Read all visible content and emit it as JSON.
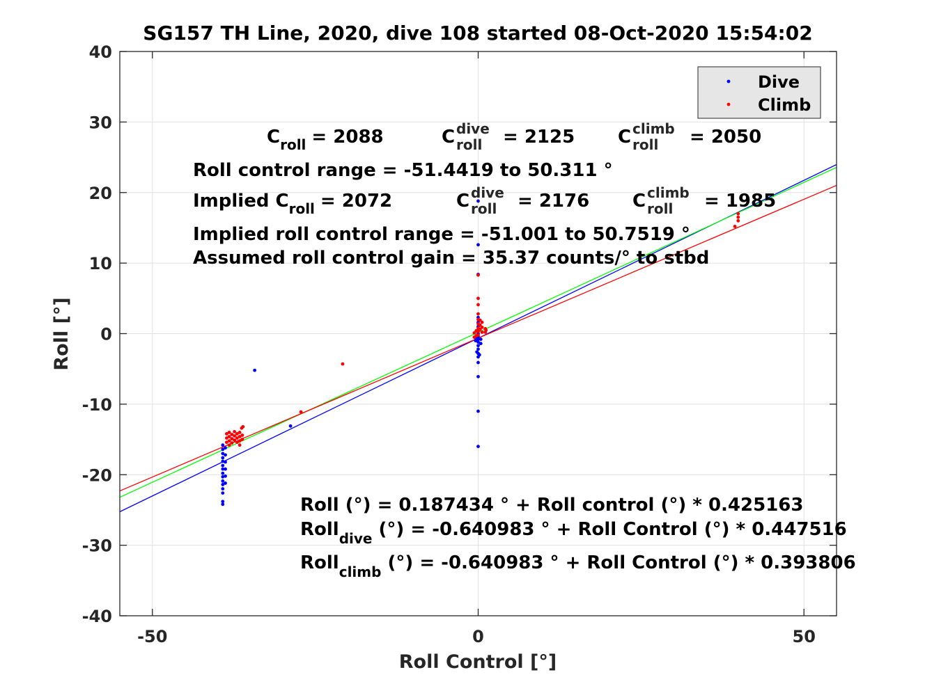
{
  "chart_data": {
    "type": "scatter",
    "title": "SG157 TH Line, 2020, dive 108 started 08-Oct-2020 15:54:02",
    "xlabel": "Roll Control [°]",
    "ylabel": "Roll [°]",
    "xlim": [
      -55,
      55
    ],
    "ylim": [
      -40,
      40
    ],
    "xticks": [
      -50,
      0,
      50
    ],
    "yticks": [
      -40,
      -30,
      -20,
      -10,
      0,
      10,
      20,
      30,
      40
    ],
    "xtick_labels": [
      "-50",
      "0",
      "50"
    ],
    "ytick_labels": [
      "-40",
      "-30",
      "-20",
      "-10",
      "0",
      "10",
      "20",
      "30",
      "40"
    ],
    "grid": true,
    "legend": {
      "placement": "top-right",
      "entries": [
        "Dive",
        "Climb"
      ]
    },
    "colors": {
      "dive": "#0000ff",
      "climb": "#ff0000",
      "combined_fit": "#00ff00"
    },
    "fit_lines": [
      {
        "series": "Dive",
        "intercept": -0.640983,
        "slope": 0.447516,
        "color": "#0000ff"
      },
      {
        "series": "Combined",
        "intercept": 0.187434,
        "slope": 0.425163,
        "color": "#00ff00"
      },
      {
        "series": "Climb",
        "intercept": -0.640983,
        "slope": 0.393806,
        "color": "#ff0000"
      }
    ],
    "series": [
      {
        "name": "Dive",
        "color": "#0000ff",
        "points": [
          [
            -39.2,
            -15.8
          ],
          [
            -39.2,
            -16.4
          ],
          [
            -39.2,
            -17.0
          ],
          [
            -39.2,
            -17.6
          ],
          [
            -39.2,
            -18.1
          ],
          [
            -39.2,
            -18.7
          ],
          [
            -39.2,
            -19.2
          ],
          [
            -39.2,
            -19.8
          ],
          [
            -39.2,
            -20.3
          ],
          [
            -39.2,
            -20.9
          ],
          [
            -39.2,
            -21.4
          ],
          [
            -39.2,
            -22.0
          ],
          [
            -39.2,
            -22.6
          ],
          [
            -39.2,
            -23.8
          ],
          [
            -39.2,
            -24.2
          ],
          [
            -38.8,
            -16.2
          ],
          [
            -38.8,
            -17.2
          ],
          [
            -38.8,
            -18.2
          ],
          [
            -38.8,
            -19.2
          ],
          [
            -38.8,
            -20.2
          ],
          [
            -38.8,
            -21.2
          ],
          [
            -34.3,
            -5.2
          ],
          [
            -28.8,
            -13.1
          ],
          [
            0,
            12.6
          ],
          [
            0,
            8.4
          ],
          [
            0,
            18.8
          ],
          [
            0,
            2.3
          ],
          [
            0,
            1.6
          ],
          [
            0,
            1.0
          ],
          [
            0,
            0.5
          ],
          [
            0,
            0.0
          ],
          [
            0,
            -0.4
          ],
          [
            0,
            -0.8
          ],
          [
            0,
            -1.2
          ],
          [
            0,
            -1.7
          ],
          [
            0,
            -2.2
          ],
          [
            0,
            -2.8
          ],
          [
            0,
            -3.3
          ],
          [
            0,
            -4.1
          ],
          [
            0,
            -6.1
          ],
          [
            0,
            -11.0
          ],
          [
            0,
            -16.0
          ],
          [
            -0.4,
            -0.6
          ],
          [
            -0.4,
            -1.0
          ],
          [
            0.4,
            -0.8
          ],
          [
            0.4,
            -1.4
          ],
          [
            -0.2,
            -2.6
          ],
          [
            0.2,
            -3.0
          ]
        ]
      },
      {
        "name": "Climb",
        "color": "#ff0000",
        "points": [
          [
            -38.6,
            -14.2
          ],
          [
            -38.6,
            -14.8
          ],
          [
            -38.6,
            -15.4
          ],
          [
            -38.2,
            -14.0
          ],
          [
            -38.2,
            -14.6
          ],
          [
            -38.2,
            -15.2
          ],
          [
            -38.2,
            -15.8
          ],
          [
            -37.8,
            -14.3
          ],
          [
            -37.8,
            -14.9
          ],
          [
            -37.8,
            -15.5
          ],
          [
            -37.4,
            -13.9
          ],
          [
            -37.4,
            -14.5
          ],
          [
            -37.4,
            -15.1
          ],
          [
            -37.0,
            -14.2
          ],
          [
            -37.0,
            -14.8
          ],
          [
            -37.0,
            -15.4
          ],
          [
            -36.6,
            -14.0
          ],
          [
            -36.6,
            -14.6
          ],
          [
            -36.6,
            -15.2
          ],
          [
            -36.6,
            -15.8
          ],
          [
            -36.3,
            -13.4
          ],
          [
            -36.1,
            -13.2
          ],
          [
            -36.2,
            -14.4
          ],
          [
            -36.2,
            -15.0
          ],
          [
            -27.2,
            -11.1
          ],
          [
            -20.8,
            -4.3
          ],
          [
            0,
            8.3
          ],
          [
            0,
            5.0
          ],
          [
            0,
            4.1
          ],
          [
            0,
            2.8
          ],
          [
            0,
            2.0
          ],
          [
            0,
            1.4
          ],
          [
            0,
            0.8
          ],
          [
            0,
            0.3
          ],
          [
            0,
            -0.2
          ],
          [
            0.3,
            1.9
          ],
          [
            0.3,
            1.2
          ],
          [
            0.3,
            0.6
          ],
          [
            0.6,
            1.6
          ],
          [
            0.6,
            0.9
          ],
          [
            0.6,
            0.2
          ],
          [
            -0.3,
            0.4
          ],
          [
            -0.3,
            -0.3
          ],
          [
            -0.6,
            0.1
          ],
          [
            -0.6,
            -0.5
          ],
          [
            1.1,
            0.7
          ],
          [
            1.1,
            0.2
          ],
          [
            1.2,
            0.5
          ],
          [
            39.4,
            15.2
          ],
          [
            39.9,
            16.0
          ],
          [
            39.9,
            16.5
          ],
          [
            39.9,
            17.0
          ]
        ]
      }
    ],
    "annotations": {
      "c_roll_label": "C",
      "c_roll_sub": "roll",
      "c_roll_value": "= 2088",
      "c_dive_sup": "dive",
      "c_dive_value": "= 2125",
      "c_climb_sup": "climb",
      "c_climb_value": "= 2050",
      "range_text": "Roll control range = -51.4419 to 50.311 °",
      "implied_prefix": "Implied C",
      "implied_value": "= 2072",
      "implied_dive_value": "= 2176",
      "implied_climb_value": "= 1985",
      "implied_range_text": "Implied roll control range = -51.001 to 50.7519 °",
      "gain_text": "Assumed roll control gain = 35.37 counts/° to stbd",
      "eq_combined": "Roll (°) = 0.187434 ° + Roll control (°) * 0.425163",
      "eq_dive_prefix": "Roll",
      "eq_dive_sub": "dive",
      "eq_dive_rest": " (°) = -0.640983 ° + Roll Control (°) * 0.447516",
      "eq_climb_prefix": "Roll",
      "eq_climb_sub": "climb",
      "eq_climb_rest": " (°) = -0.640983 ° + Roll Control (°) * 0.393806"
    }
  }
}
